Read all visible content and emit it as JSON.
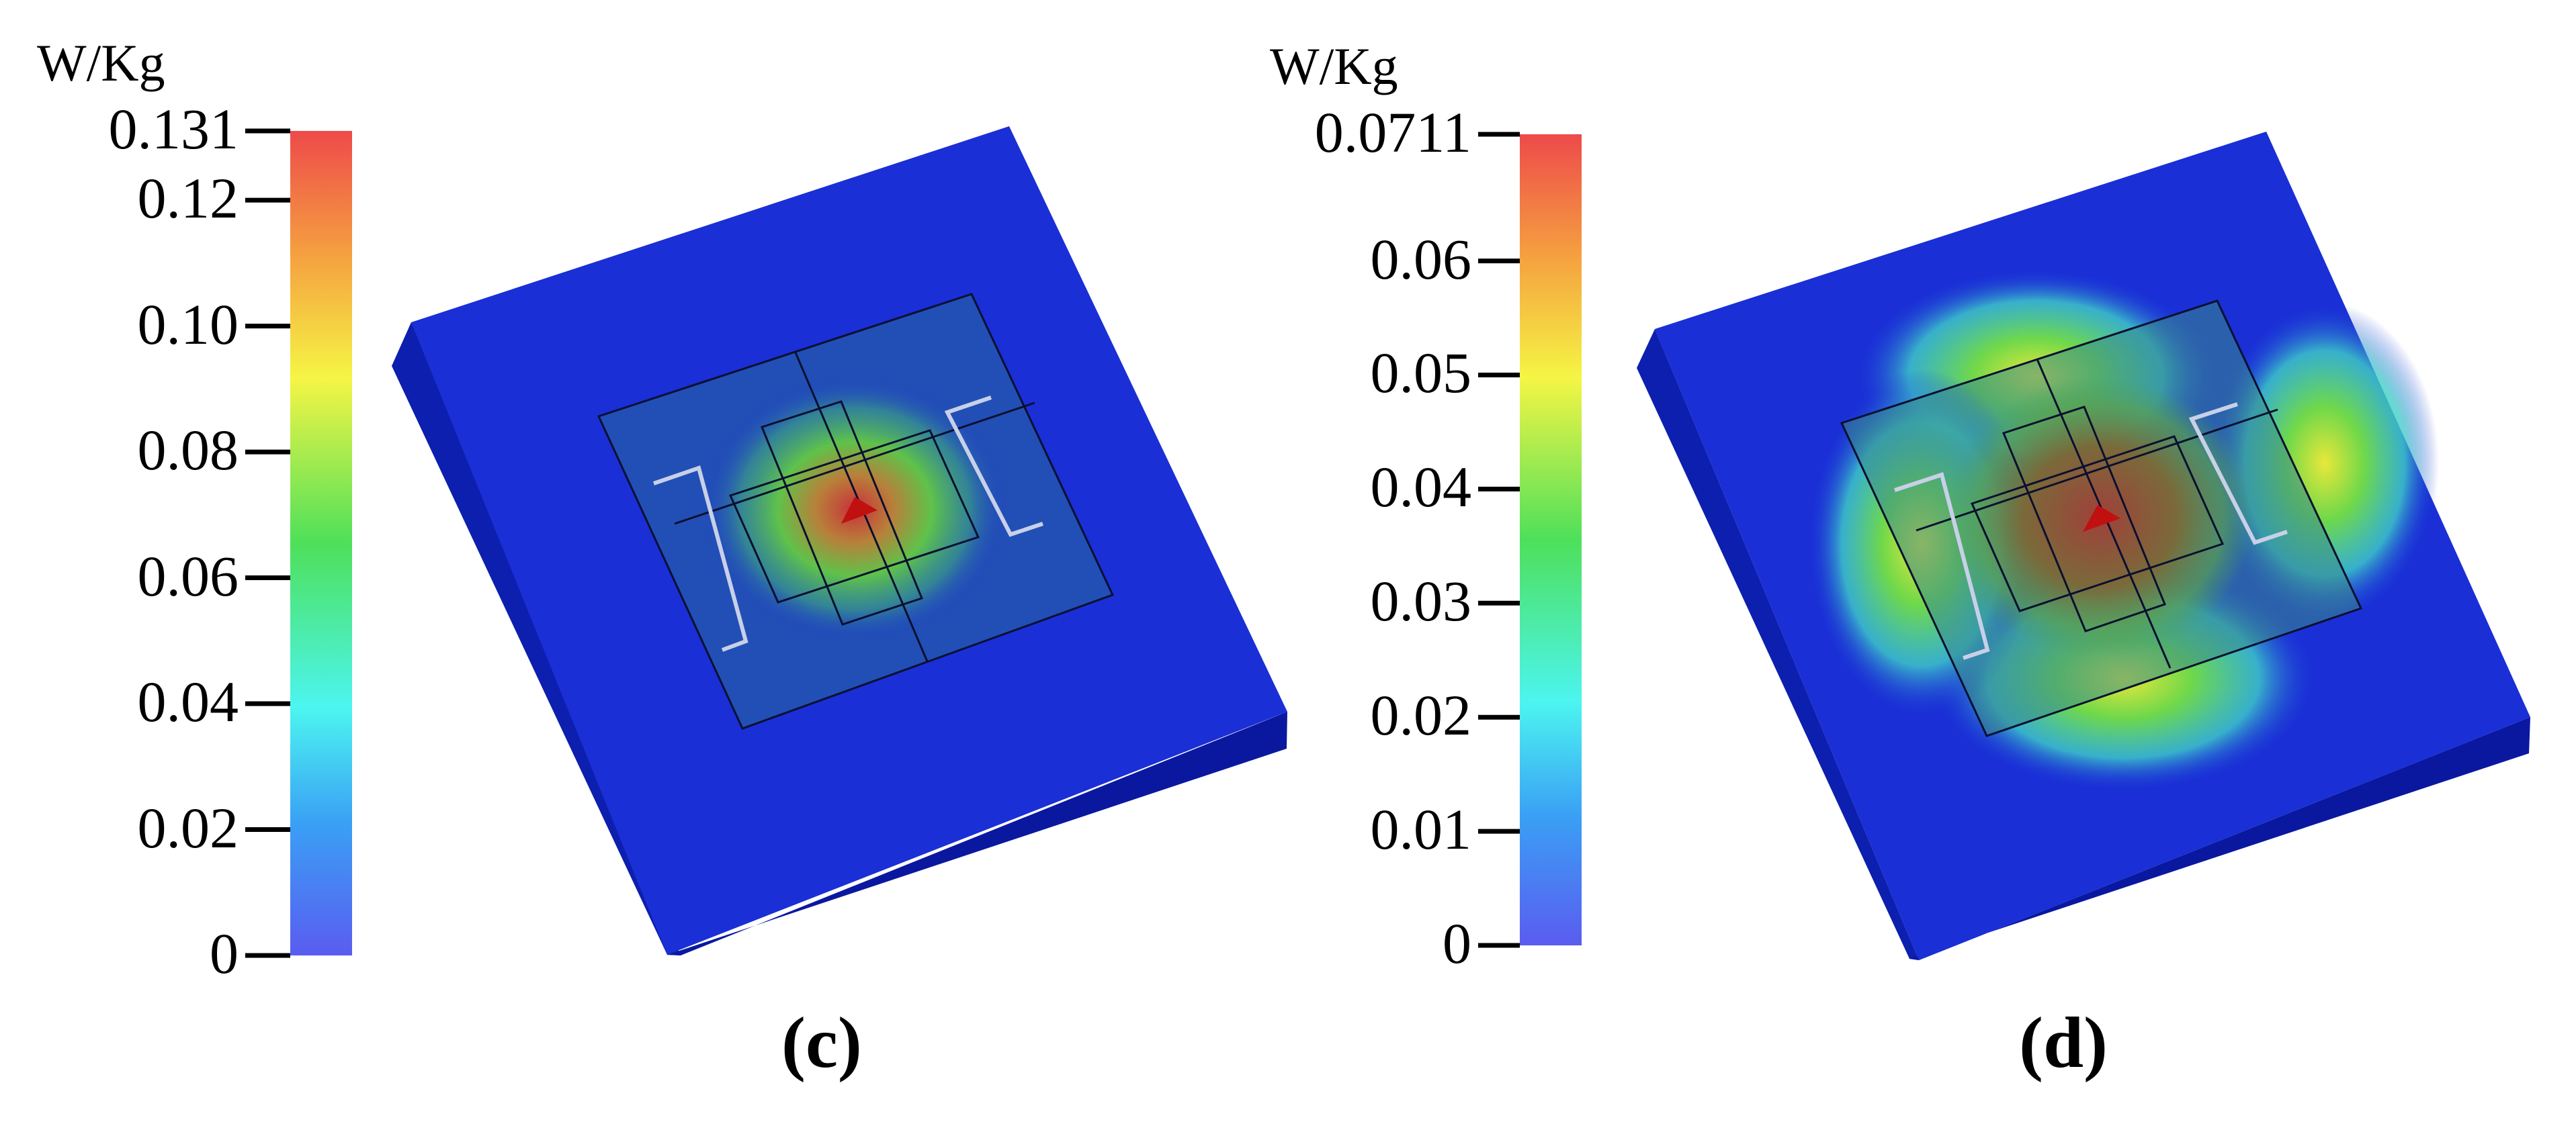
{
  "panels": [
    {
      "caption": "(c)",
      "colorbar": {
        "unit": "W/Kg",
        "max_label": "0.131",
        "max_value": 0.131,
        "ticks": [
          {
            "label": "0.12",
            "value": 0.12
          },
          {
            "label": "0.10",
            "value": 0.1
          },
          {
            "label": "0.08",
            "value": 0.08
          },
          {
            "label": "0.06",
            "value": 0.06
          },
          {
            "label": "0.04",
            "value": 0.04
          },
          {
            "label": "0.02",
            "value": 0.02
          },
          {
            "label": "0",
            "value": 0
          }
        ]
      }
    },
    {
      "caption": "(d)",
      "colorbar": {
        "unit": "W/Kg",
        "max_label": "0.0711",
        "max_value": 0.0711,
        "ticks": [
          {
            "label": "0.06",
            "value": 0.06
          },
          {
            "label": "0.05",
            "value": 0.05
          },
          {
            "label": "0.04",
            "value": 0.04
          },
          {
            "label": "0.03",
            "value": 0.03
          },
          {
            "label": "0.02",
            "value": 0.02
          },
          {
            "label": "0.01",
            "value": 0.01
          },
          {
            "label": "0",
            "value": 0
          }
        ]
      }
    }
  ],
  "colors": {
    "colormap": [
      "#5a5cf0",
      "#3aa0f5",
      "#4cf5f0",
      "#4ee05a",
      "#f5f545",
      "#f5a040",
      "#ee4a4a"
    ],
    "phantom_blue": "#1a2fd6",
    "phantom_edge": "#0a18a0"
  }
}
